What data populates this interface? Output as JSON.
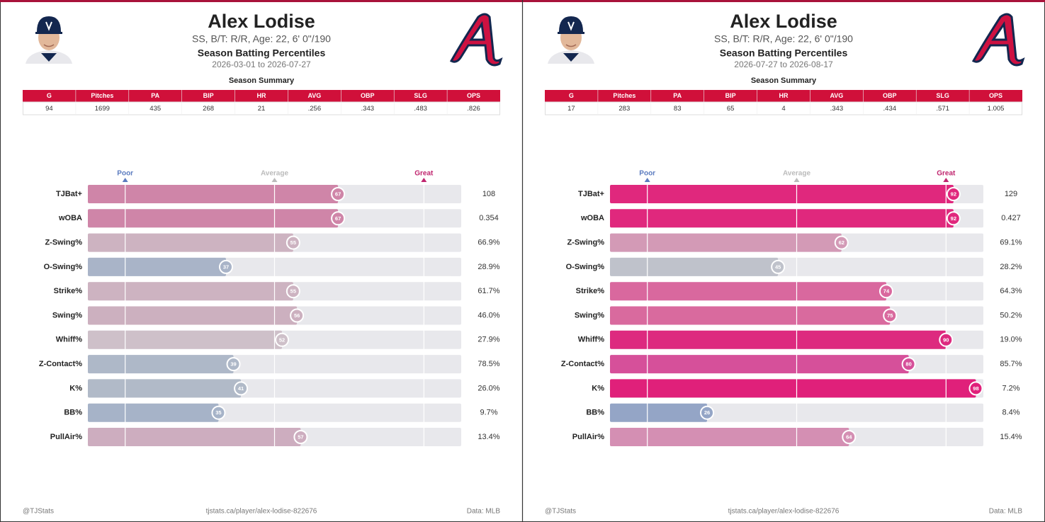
{
  "chart_data": [
    {
      "type": "bar",
      "title": "Alex Lodise",
      "subtitle": "SS, B/T: R/R, Age: 22, 6' 0\"/190",
      "heading": "Season Batting Percentiles",
      "date_range": "2026-03-01 to 2026-07-27",
      "table": {
        "caption": "Season Summary",
        "columns": [
          "G",
          "Pitches",
          "PA",
          "BIP",
          "HR",
          "AVG",
          "OBP",
          "SLG",
          "OPS"
        ],
        "rows": [
          [
            "94",
            "1699",
            "435",
            "268",
            "21",
            ".256",
            ".343",
            ".483",
            ".826"
          ]
        ]
      },
      "categories": [
        "TJBat+",
        "wOBA",
        "Z-Swing%",
        "O-Swing%",
        "Strike%",
        "Swing%",
        "Whiff%",
        "Z-Contact%",
        "K%",
        "BB%",
        "PullAir%"
      ],
      "values": [
        67,
        67,
        55,
        37,
        55,
        56,
        52,
        39,
        41,
        35,
        57
      ],
      "colors": [
        "#cf85a8",
        "#cf85a8",
        "#cdb3c1",
        "#a9b4c8",
        "#cdb3c1",
        "#ccb0bf",
        "#cec0c9",
        "#aeb8c8",
        "#b1bac8",
        "#a6b3c8",
        "#cdadbf"
      ],
      "stats": [
        "108",
        "0.354",
        "66.9%",
        "28.9%",
        "61.7%",
        "46.0%",
        "27.9%",
        "78.5%",
        "26.0%",
        "9.7%",
        "13.4%"
      ],
      "xlim": [
        0,
        100
      ],
      "xticks": [
        {
          "value": 10,
          "label": "Poor"
        },
        {
          "value": 50,
          "label": "Average"
        },
        {
          "value": 90,
          "label": "Great"
        }
      ],
      "xtick_colors": [
        "#5b7bbf",
        "#bbbbbb",
        "#c0266f"
      ],
      "grid": true,
      "footer": {
        "left": "@TJStats",
        "center": "tjstats.ca/player/alex-lodise-822676",
        "right": "Data: MLB"
      }
    },
    {
      "type": "bar",
      "title": "Alex Lodise",
      "subtitle": "SS, B/T: R/R, Age: 22, 6' 0\"/190",
      "heading": "Season Batting Percentiles",
      "date_range": "2026-07-27 to 2026-08-17",
      "table": {
        "caption": "Season Summary",
        "columns": [
          "G",
          "Pitches",
          "PA",
          "BIP",
          "HR",
          "AVG",
          "OBP",
          "SLG",
          "OPS"
        ],
        "rows": [
          [
            "17",
            "283",
            "83",
            "65",
            "4",
            ".343",
            ".434",
            ".571",
            "1.005"
          ]
        ]
      },
      "categories": [
        "TJBat+",
        "wOBA",
        "Z-Swing%",
        "O-Swing%",
        "Strike%",
        "Swing%",
        "Whiff%",
        "Z-Contact%",
        "K%",
        "BB%",
        "PullAir%"
      ],
      "values": [
        92,
        92,
        62,
        45,
        74,
        75,
        90,
        80,
        98,
        26,
        64
      ],
      "colors": [
        "#e0287d",
        "#e0287d",
        "#d39ab6",
        "#bfc2cb",
        "#d9689e",
        "#d96a9e",
        "#dd2a7f",
        "#d6509a",
        "#e0207a",
        "#94a5c6",
        "#d48fb3"
      ],
      "stats": [
        "129",
        "0.427",
        "69.1%",
        "28.2%",
        "64.3%",
        "50.2%",
        "19.0%",
        "85.7%",
        "7.2%",
        "8.4%",
        "15.4%"
      ],
      "xlim": [
        0,
        100
      ],
      "xticks": [
        {
          "value": 10,
          "label": "Poor"
        },
        {
          "value": 50,
          "label": "Average"
        },
        {
          "value": 90,
          "label": "Great"
        }
      ],
      "xtick_colors": [
        "#5b7bbf",
        "#bbbbbb",
        "#c0266f"
      ],
      "grid": true,
      "footer": {
        "left": "@TJStats",
        "center": "tjstats.ca/player/alex-lodise-822676",
        "right": "Data: MLB"
      }
    }
  ]
}
